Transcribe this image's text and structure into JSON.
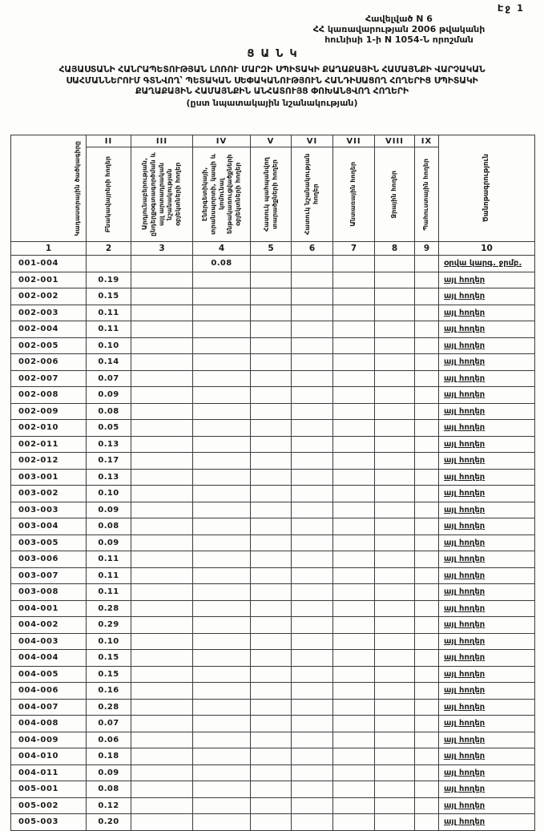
{
  "page": {
    "page_number_label": "Էջ 1",
    "annex": {
      "line1": "Հավելված N 6",
      "line2": "ՀՀ կառավարության 2006 թվականի",
      "line3": "հունիսի 1-ի N 1054-Ն որոշման"
    },
    "doc_title": "ՑԱՆԿ",
    "title_lines": [
      "ՀԱՅԱՍՏԱՆԻ ՀԱՆՐԱՊԵՏՈՒԹՅԱՆ ԼՈՌՈՒ ՄԱՐԶԻ ՍՊԻՏԱԿԻ ՔԱՂԱՔԱՅԻՆ ՀԱՄԱՅՆՔԻ ՎԱՐՉԱԿԱՆ",
      "ՍԱՀՄԱՆՆԵՐՈՒՄ ԳՏՆՎՈՂ՝ ՊԵՏԱԿԱՆ ՍԵՓԱԿԱՆՈՒԹՅՈՒՆ ՀԱՆԴԻՍԱՑՈՂ ՀՈՂԵՐԻՑ ՍՊԻՏԱԿԻ",
      "ՔԱՂԱՔԱՅԻՆ ՀԱՄԱՅՆՔԻՆ ԱՆՀԱՏՈՒՅՑ ՓՈԽԱՆՑՎՈՂ ՀՈՂԵՐԻ"
    ],
    "subtitle": "(ըստ նպատակային նշանակության)"
  },
  "table": {
    "columns": [
      {
        "numeral": "",
        "index": "1",
        "label": "Կադաստրային ծածկագիրը"
      },
      {
        "numeral": "II",
        "index": "2",
        "label": "Բնակավայրերի հողեր"
      },
      {
        "numeral": "III",
        "index": "3",
        "label": "Արդյունաբերության, ընդերքօգտագործման և այլ արտադրական նշանակության օբյեկտների հողեր"
      },
      {
        "numeral": "IV",
        "index": "4",
        "label": "Էներգետիկայի, տրանսպորտի, կապի և կոմունալ ենթակառուցվածքների օբյեկտների հողեր"
      },
      {
        "numeral": "V",
        "index": "5",
        "label": "Հատուկ պահպանվող տարածքների հողեր"
      },
      {
        "numeral": "VI",
        "index": "6",
        "label": "Հատուկ նշանակության հողեր"
      },
      {
        "numeral": "VII",
        "index": "7",
        "label": "Անտառային հողեր"
      },
      {
        "numeral": "VIII",
        "index": "8",
        "label": "Ջրային հողեր"
      },
      {
        "numeral": "IX",
        "index": "9",
        "label": "Պահուստային հողեր"
      },
      {
        "numeral": "",
        "index": "10",
        "label": "Ծանոթագրություն"
      }
    ],
    "rows": [
      [
        "001-004",
        "",
        "",
        "0.08",
        "",
        "",
        "",
        "",
        "",
        "օրվա կարգ. ջրմբ."
      ],
      [
        "002-001",
        "0.19",
        "",
        "",
        "",
        "",
        "",
        "",
        "",
        "այլ հողեր"
      ],
      [
        "002-002",
        "0.15",
        "",
        "",
        "",
        "",
        "",
        "",
        "",
        "այլ հողեր"
      ],
      [
        "002-003",
        "0.11",
        "",
        "",
        "",
        "",
        "",
        "",
        "",
        "այլ հողեր"
      ],
      [
        "002-004",
        "0.11",
        "",
        "",
        "",
        "",
        "",
        "",
        "",
        "այլ հողեր"
      ],
      [
        "002-005",
        "0.10",
        "",
        "",
        "",
        "",
        "",
        "",
        "",
        "այլ հողեր"
      ],
      [
        "002-006",
        "0.14",
        "",
        "",
        "",
        "",
        "",
        "",
        "",
        "այլ հողեր"
      ],
      [
        "002-007",
        "0.07",
        "",
        "",
        "",
        "",
        "",
        "",
        "",
        "այլ հողեր"
      ],
      [
        "002-008",
        "0.09",
        "",
        "",
        "",
        "",
        "",
        "",
        "",
        "այլ հողեր"
      ],
      [
        "002-009",
        "0.08",
        "",
        "",
        "",
        "",
        "",
        "",
        "",
        "այլ հողեր"
      ],
      [
        "002-010",
        "0.05",
        "",
        "",
        "",
        "",
        "",
        "",
        "",
        "այլ հողեր"
      ],
      [
        "002-011",
        "0.13",
        "",
        "",
        "",
        "",
        "",
        "",
        "",
        "այլ հողեր"
      ],
      [
        "002-012",
        "0.17",
        "",
        "",
        "",
        "",
        "",
        "",
        "",
        "այլ հողեր"
      ],
      [
        "003-001",
        "0.13",
        "",
        "",
        "",
        "",
        "",
        "",
        "",
        "այլ հողեր"
      ],
      [
        "003-002",
        "0.10",
        "",
        "",
        "",
        "",
        "",
        "",
        "",
        "այլ հողեր"
      ],
      [
        "003-003",
        "0.09",
        "",
        "",
        "",
        "",
        "",
        "",
        "",
        "այլ հողեր"
      ],
      [
        "003-004",
        "0.08",
        "",
        "",
        "",
        "",
        "",
        "",
        "",
        "այլ հողեր"
      ],
      [
        "003-005",
        "0.09",
        "",
        "",
        "",
        "",
        "",
        "",
        "",
        "այլ հողեր"
      ],
      [
        "003-006",
        "0.11",
        "",
        "",
        "",
        "",
        "",
        "",
        "",
        "այլ հողեր"
      ],
      [
        "003-007",
        "0.11",
        "",
        "",
        "",
        "",
        "",
        "",
        "",
        "այլ հողեր"
      ],
      [
        "003-008",
        "0.11",
        "",
        "",
        "",
        "",
        "",
        "",
        "",
        "այլ հողեր"
      ],
      [
        "004-001",
        "0.28",
        "",
        "",
        "",
        "",
        "",
        "",
        "",
        "այլ հողեր"
      ],
      [
        "004-002",
        "0.29",
        "",
        "",
        "",
        "",
        "",
        "",
        "",
        "այլ հողեր"
      ],
      [
        "004-003",
        "0.10",
        "",
        "",
        "",
        "",
        "",
        "",
        "",
        "այլ հողեր"
      ],
      [
        "004-004",
        "0.15",
        "",
        "",
        "",
        "",
        "",
        "",
        "",
        "այլ հողեր"
      ],
      [
        "004-005",
        "0.15",
        "",
        "",
        "",
        "",
        "",
        "",
        "",
        "այլ հողեր"
      ],
      [
        "004-006",
        "0.16",
        "",
        "",
        "",
        "",
        "",
        "",
        "",
        "այլ հողեր"
      ],
      [
        "004-007",
        "0.28",
        "",
        "",
        "",
        "",
        "",
        "",
        "",
        "այլ հողեր"
      ],
      [
        "004-008",
        "0.07",
        "",
        "",
        "",
        "",
        "",
        "",
        "",
        "այլ հողեր"
      ],
      [
        "004-009",
        "0.06",
        "",
        "",
        "",
        "",
        "",
        "",
        "",
        "այլ հողեր"
      ],
      [
        "004-010",
        "0.18",
        "",
        "",
        "",
        "",
        "",
        "",
        "",
        "այլ հողեր"
      ],
      [
        "004-011",
        "0.09",
        "",
        "",
        "",
        "",
        "",
        "",
        "",
        "այլ հողեր"
      ],
      [
        "005-001",
        "0.08",
        "",
        "",
        "",
        "",
        "",
        "",
        "",
        "այլ հողեր"
      ],
      [
        "005-002",
        "0.12",
        "",
        "",
        "",
        "",
        "",
        "",
        "",
        "այլ հողեր"
      ],
      [
        "005-003",
        "0.20",
        "",
        "",
        "",
        "",
        "",
        "",
        "",
        "այլ հողեր"
      ]
    ]
  }
}
